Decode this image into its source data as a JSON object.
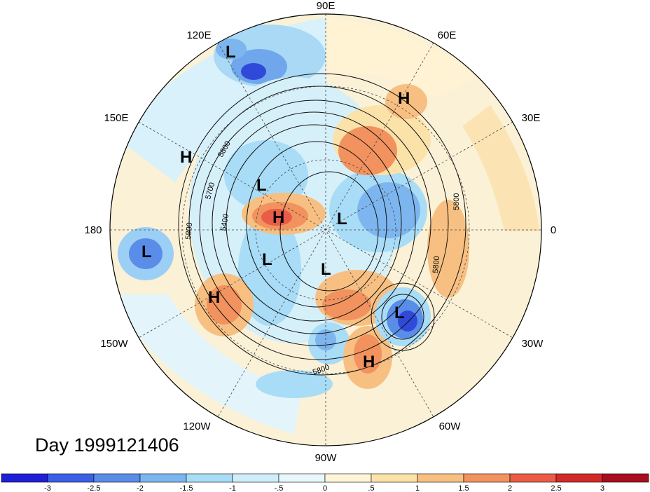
{
  "title": "Day 1999121406",
  "longitude_labels": [
    {
      "text": "90E"
    },
    {
      "text": "60E"
    },
    {
      "text": "30E"
    },
    {
      "text": "0"
    },
    {
      "text": "30W"
    },
    {
      "text": "60W"
    },
    {
      "text": "90W"
    },
    {
      "text": "120W"
    },
    {
      "text": "150W"
    },
    {
      "text": "180"
    },
    {
      "text": "150E"
    },
    {
      "text": "120E"
    }
  ],
  "pressure_centers": [
    {
      "type": "L"
    },
    {
      "type": "H"
    },
    {
      "type": "H"
    },
    {
      "type": "L"
    },
    {
      "type": "H"
    },
    {
      "type": "L"
    },
    {
      "type": "L"
    },
    {
      "type": "L"
    },
    {
      "type": "L"
    },
    {
      "type": "H"
    },
    {
      "type": "L"
    },
    {
      "type": "H"
    }
  ],
  "contour_labels": [
    "5800",
    "5700",
    "5800",
    "5400",
    "5800",
    "5800",
    "5800"
  ],
  "colorbar": {
    "ticks": [
      "-3",
      "-2.5",
      "-2",
      "-1.5",
      "-1",
      "-.5",
      "0",
      ".5",
      "1",
      "1.5",
      "2",
      "2.5",
      "3"
    ],
    "colors": [
      "#1f1fd6",
      "#3c5fe6",
      "#5a8de8",
      "#7db6ef",
      "#a8dcf7",
      "#cdeefa",
      "#e9f8fc",
      "#fff6d9",
      "#fbe2a9",
      "#f7c082",
      "#f2925e",
      "#e95c48",
      "#d02a2a",
      "#a80f1e"
    ]
  }
}
